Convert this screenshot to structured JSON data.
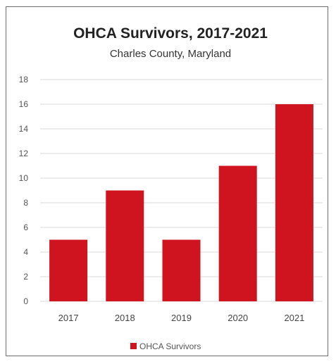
{
  "chart_data": {
    "type": "bar",
    "title": "OHCA Survivors, 2017-2021",
    "subtitle": "Charles County, Maryland",
    "categories": [
      "2017",
      "2018",
      "2019",
      "2020",
      "2021"
    ],
    "series": [
      {
        "name": "OHCA Survivors",
        "values": [
          5,
          9,
          5,
          11,
          16
        ],
        "color": "#d0141f"
      }
    ],
    "ylim": [
      0,
      18
    ],
    "yticks": [
      "0",
      "2",
      "4",
      "6",
      "8",
      "10",
      "12",
      "14",
      "16",
      "18"
    ],
    "grid": true,
    "legend": "bottom"
  }
}
